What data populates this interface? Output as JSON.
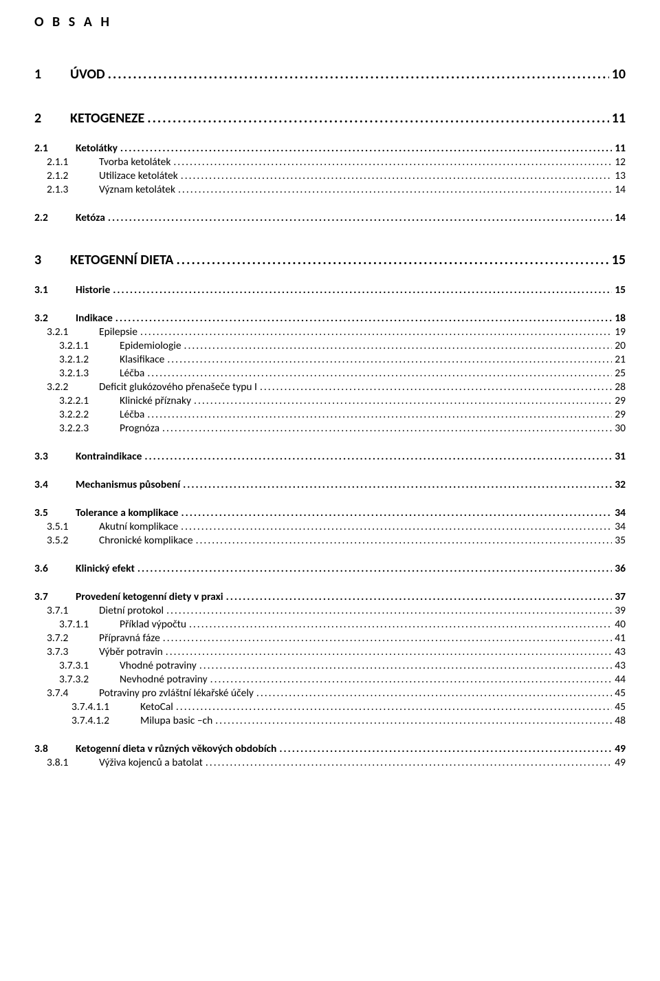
{
  "title": "O B S A H",
  "colors": {
    "text": "#000000",
    "background": "#ffffff"
  },
  "font": {
    "family": "Calibri",
    "title_size_pt": 15,
    "h1_size_pt": 15,
    "body_size_pt": 11.5
  },
  "toc": [
    {
      "level": 1,
      "num": "1",
      "label": "ÚVOD",
      "page": "10"
    },
    {
      "level": 1,
      "num": "2",
      "label": "KETOGENEZE",
      "page": "11"
    },
    {
      "level": 2,
      "num": "2.1",
      "label": "Ketolátky",
      "page": "11"
    },
    {
      "level": 3,
      "num": "2.1.1",
      "label": "Tvorba ketolátek",
      "page": "12"
    },
    {
      "level": 3,
      "num": "2.1.2",
      "label": "Utilizace ketolátek",
      "page": "13"
    },
    {
      "level": 3,
      "num": "2.1.3",
      "label": "Význam ketolátek",
      "page": "14"
    },
    {
      "level": 2,
      "num": "2.2",
      "label": "Ketóza",
      "page": "14"
    },
    {
      "level": 1,
      "num": "3",
      "label": "KETOGENNÍ DIETA",
      "page": "15"
    },
    {
      "level": 2,
      "num": "3.1",
      "label": "Historie",
      "page": "15"
    },
    {
      "level": 2,
      "num": "3.2",
      "label": "Indikace",
      "page": "18"
    },
    {
      "level": 3,
      "num": "3.2.1",
      "label": "Epilepsie",
      "page": "19"
    },
    {
      "level": 4,
      "num": "3.2.1.1",
      "label": "Epidemiologie",
      "page": "20"
    },
    {
      "level": 4,
      "num": "3.2.1.2",
      "label": "Klasifikace",
      "page": "21"
    },
    {
      "level": 4,
      "num": "3.2.1.3",
      "label": "Léčba",
      "page": "25"
    },
    {
      "level": 3,
      "num": "3.2.2",
      "label": "Deficit glukózového přenašeče typu I",
      "page": "28"
    },
    {
      "level": 4,
      "num": "3.2.2.1",
      "label": "Klinické příznaky",
      "page": "29"
    },
    {
      "level": 4,
      "num": "3.2.2.2",
      "label": "Léčba",
      "page": "29"
    },
    {
      "level": 4,
      "num": "3.2.2.3",
      "label": "Prognóza",
      "page": "30"
    },
    {
      "level": 2,
      "num": "3.3",
      "label": "Kontraindikace",
      "page": "31"
    },
    {
      "level": 2,
      "num": "3.4",
      "label": "Mechanismus působení",
      "page": "32"
    },
    {
      "level": 2,
      "num": "3.5",
      "label": "Tolerance a komplikace",
      "page": "34"
    },
    {
      "level": 3,
      "num": "3.5.1",
      "label": "Akutní komplikace",
      "page": "34"
    },
    {
      "level": 3,
      "num": "3.5.2",
      "label": "Chronické komplikace",
      "page": "35"
    },
    {
      "level": 2,
      "num": "3.6",
      "label": "Klinický efekt",
      "page": "36"
    },
    {
      "level": 2,
      "num": "3.7",
      "label": "Provedení ketogenní diety v praxi",
      "page": "37"
    },
    {
      "level": 3,
      "num": "3.7.1",
      "label": "Dietní protokol",
      "page": "39"
    },
    {
      "level": 4,
      "num": "3.7.1.1",
      "label": "Příklad výpočtu",
      "page": "40"
    },
    {
      "level": 3,
      "num": "3.7.2",
      "label": "Přípravná fáze",
      "page": "41"
    },
    {
      "level": 3,
      "num": "3.7.3",
      "label": "Výběr potravin",
      "page": "43"
    },
    {
      "level": 4,
      "num": "3.7.3.1",
      "label": "Vhodné potraviny",
      "page": "43"
    },
    {
      "level": 4,
      "num": "3.7.3.2",
      "label": "Nevhodné potraviny",
      "page": "44"
    },
    {
      "level": 3,
      "num": "3.7.4",
      "label": "Potraviny pro zvláštní lékařské účely",
      "page": "45"
    },
    {
      "level": 5,
      "num": "3.7.4.1.1",
      "label": "KetoCal",
      "page": "45"
    },
    {
      "level": 5,
      "num": "3.7.4.1.2",
      "label": "Milupa basic –ch",
      "page": "48"
    },
    {
      "level": 2,
      "num": "3.8",
      "label": "Ketogenní dieta v různých věkových obdobích",
      "page": "49"
    },
    {
      "level": 3,
      "num": "3.8.1",
      "label": "Výživa kojenců a batolat",
      "page": "49"
    }
  ]
}
